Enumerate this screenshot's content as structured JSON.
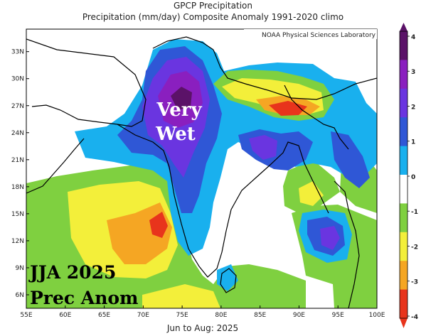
{
  "header": {
    "title": "GPCP Precipitation",
    "subtitle": "Precipitation (mm/day) Composite Anomaly 1991-2020 climo"
  },
  "credit": "NOAA Physical Sciences Laboratory",
  "footer": "Jun to Aug: 2025",
  "annotations": {
    "very": "Very",
    "wet": "Wet",
    "season": "JJA 2025",
    "variable": "Prec Anom"
  },
  "map": {
    "lat_labels": [
      "33N",
      "30N",
      "27N",
      "24N",
      "21N",
      "18N",
      "15N",
      "12N",
      "9N",
      "6N"
    ],
    "lon_labels": [
      "55E",
      "60E",
      "65E",
      "70E",
      "75E",
      "80E",
      "85E",
      "90E",
      "95E",
      "100E"
    ],
    "lon_range": [
      55,
      100
    ],
    "lat_range": [
      4.5,
      35.5
    ]
  },
  "colorbar": {
    "labels": [
      "4",
      "3",
      "2",
      "1",
      "0",
      "-1",
      "-2",
      "-3",
      "-4"
    ],
    "colors": [
      "#5b1268",
      "#8a1fbf",
      "#6a35e0",
      "#2f57d6",
      "#19b0ee",
      "#ffffff",
      "#7fd040",
      "#f3ef3a",
      "#f5a623",
      "#e8341c"
    ]
  }
}
